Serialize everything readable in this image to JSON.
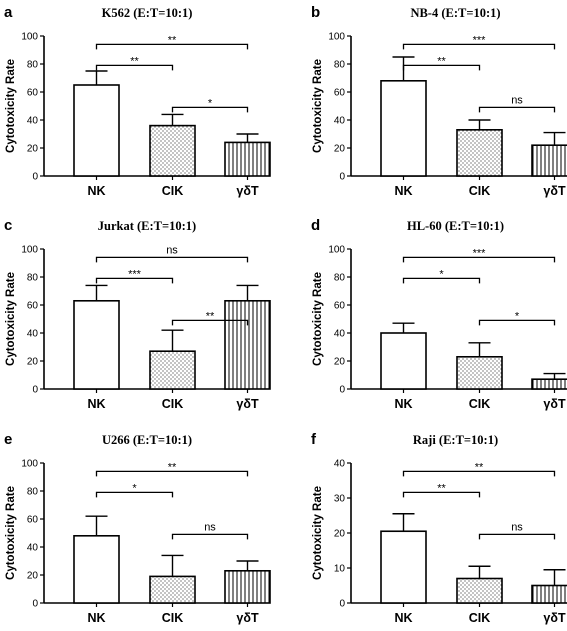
{
  "figure": {
    "categories": [
      "NK",
      "CIK",
      "γδT"
    ],
    "ylabel": "Cytotoxicity Rate"
  },
  "chart_data": [
    {
      "type": "bar",
      "panel": "a",
      "title": "K562  (E:T=10:1)",
      "categories": [
        "NK",
        "CIK",
        "γδT"
      ],
      "ylabel": "Cytotoxicity Rate",
      "ylim": [
        0,
        100
      ],
      "yticks": [
        0,
        20,
        40,
        60,
        80,
        100
      ],
      "values": [
        65,
        36,
        24
      ],
      "errors": [
        10,
        8,
        6
      ],
      "comparisons": [
        {
          "from": 0,
          "to": 2,
          "label": "**"
        },
        {
          "from": 0,
          "to": 1,
          "label": "**"
        },
        {
          "from": 1,
          "to": 2,
          "label": "*"
        }
      ]
    },
    {
      "type": "bar",
      "panel": "b",
      "title": "NB-4  (E:T=10:1)",
      "categories": [
        "NK",
        "CIK",
        "γδT"
      ],
      "ylabel": "Cytotoxicity Rate",
      "ylim": [
        0,
        100
      ],
      "yticks": [
        0,
        20,
        40,
        60,
        80,
        100
      ],
      "values": [
        68,
        33,
        22
      ],
      "errors": [
        17,
        7,
        9
      ],
      "comparisons": [
        {
          "from": 0,
          "to": 2,
          "label": "***"
        },
        {
          "from": 0,
          "to": 1,
          "label": "**"
        },
        {
          "from": 1,
          "to": 2,
          "label": "ns"
        }
      ]
    },
    {
      "type": "bar",
      "panel": "c",
      "title": "Jurkat  (E:T=10:1)",
      "categories": [
        "NK",
        "CIK",
        "γδT"
      ],
      "ylabel": "Cytotoxicity Rate",
      "ylim": [
        0,
        100
      ],
      "yticks": [
        0,
        20,
        40,
        60,
        80,
        100
      ],
      "values": [
        63,
        27,
        63
      ],
      "errors": [
        11,
        15,
        11
      ],
      "comparisons": [
        {
          "from": 0,
          "to": 2,
          "label": "ns"
        },
        {
          "from": 0,
          "to": 1,
          "label": "***"
        },
        {
          "from": 1,
          "to": 2,
          "label": "**"
        }
      ]
    },
    {
      "type": "bar",
      "panel": "d",
      "title": "HL-60  (E:T=10:1)",
      "categories": [
        "NK",
        "CIK",
        "γδT"
      ],
      "ylabel": "Cytotoxicity Rate",
      "ylim": [
        0,
        100
      ],
      "yticks": [
        0,
        20,
        40,
        60,
        80,
        100
      ],
      "values": [
        40,
        23,
        7
      ],
      "errors": [
        7,
        10,
        4
      ],
      "comparisons": [
        {
          "from": 0,
          "to": 2,
          "label": "***"
        },
        {
          "from": 0,
          "to": 1,
          "label": "*"
        },
        {
          "from": 1,
          "to": 2,
          "label": "*"
        }
      ]
    },
    {
      "type": "bar",
      "panel": "e",
      "title": "U266  (E:T=10:1)",
      "categories": [
        "NK",
        "CIK",
        "γδT"
      ],
      "ylabel": "Cytotoxicity Rate",
      "ylim": [
        0,
        100
      ],
      "yticks": [
        0,
        20,
        40,
        60,
        80,
        100
      ],
      "values": [
        48,
        19,
        23
      ],
      "errors": [
        14,
        15,
        7
      ],
      "comparisons": [
        {
          "from": 0,
          "to": 2,
          "label": "**"
        },
        {
          "from": 0,
          "to": 1,
          "label": "*"
        },
        {
          "from": 1,
          "to": 2,
          "label": "ns"
        }
      ]
    },
    {
      "type": "bar",
      "panel": "f",
      "title": "Raji  (E:T=10:1)",
      "categories": [
        "NK",
        "CIK",
        "γδT"
      ],
      "ylabel": "Cytotoxicity Rate",
      "ylim": [
        0,
        40
      ],
      "yticks": [
        0,
        10,
        20,
        30,
        40
      ],
      "values": [
        20.5,
        7,
        5
      ],
      "errors": [
        5,
        3.5,
        4.5
      ],
      "comparisons": [
        {
          "from": 0,
          "to": 2,
          "label": "**"
        },
        {
          "from": 0,
          "to": 1,
          "label": "**"
        },
        {
          "from": 1,
          "to": 2,
          "label": "ns"
        }
      ]
    }
  ]
}
